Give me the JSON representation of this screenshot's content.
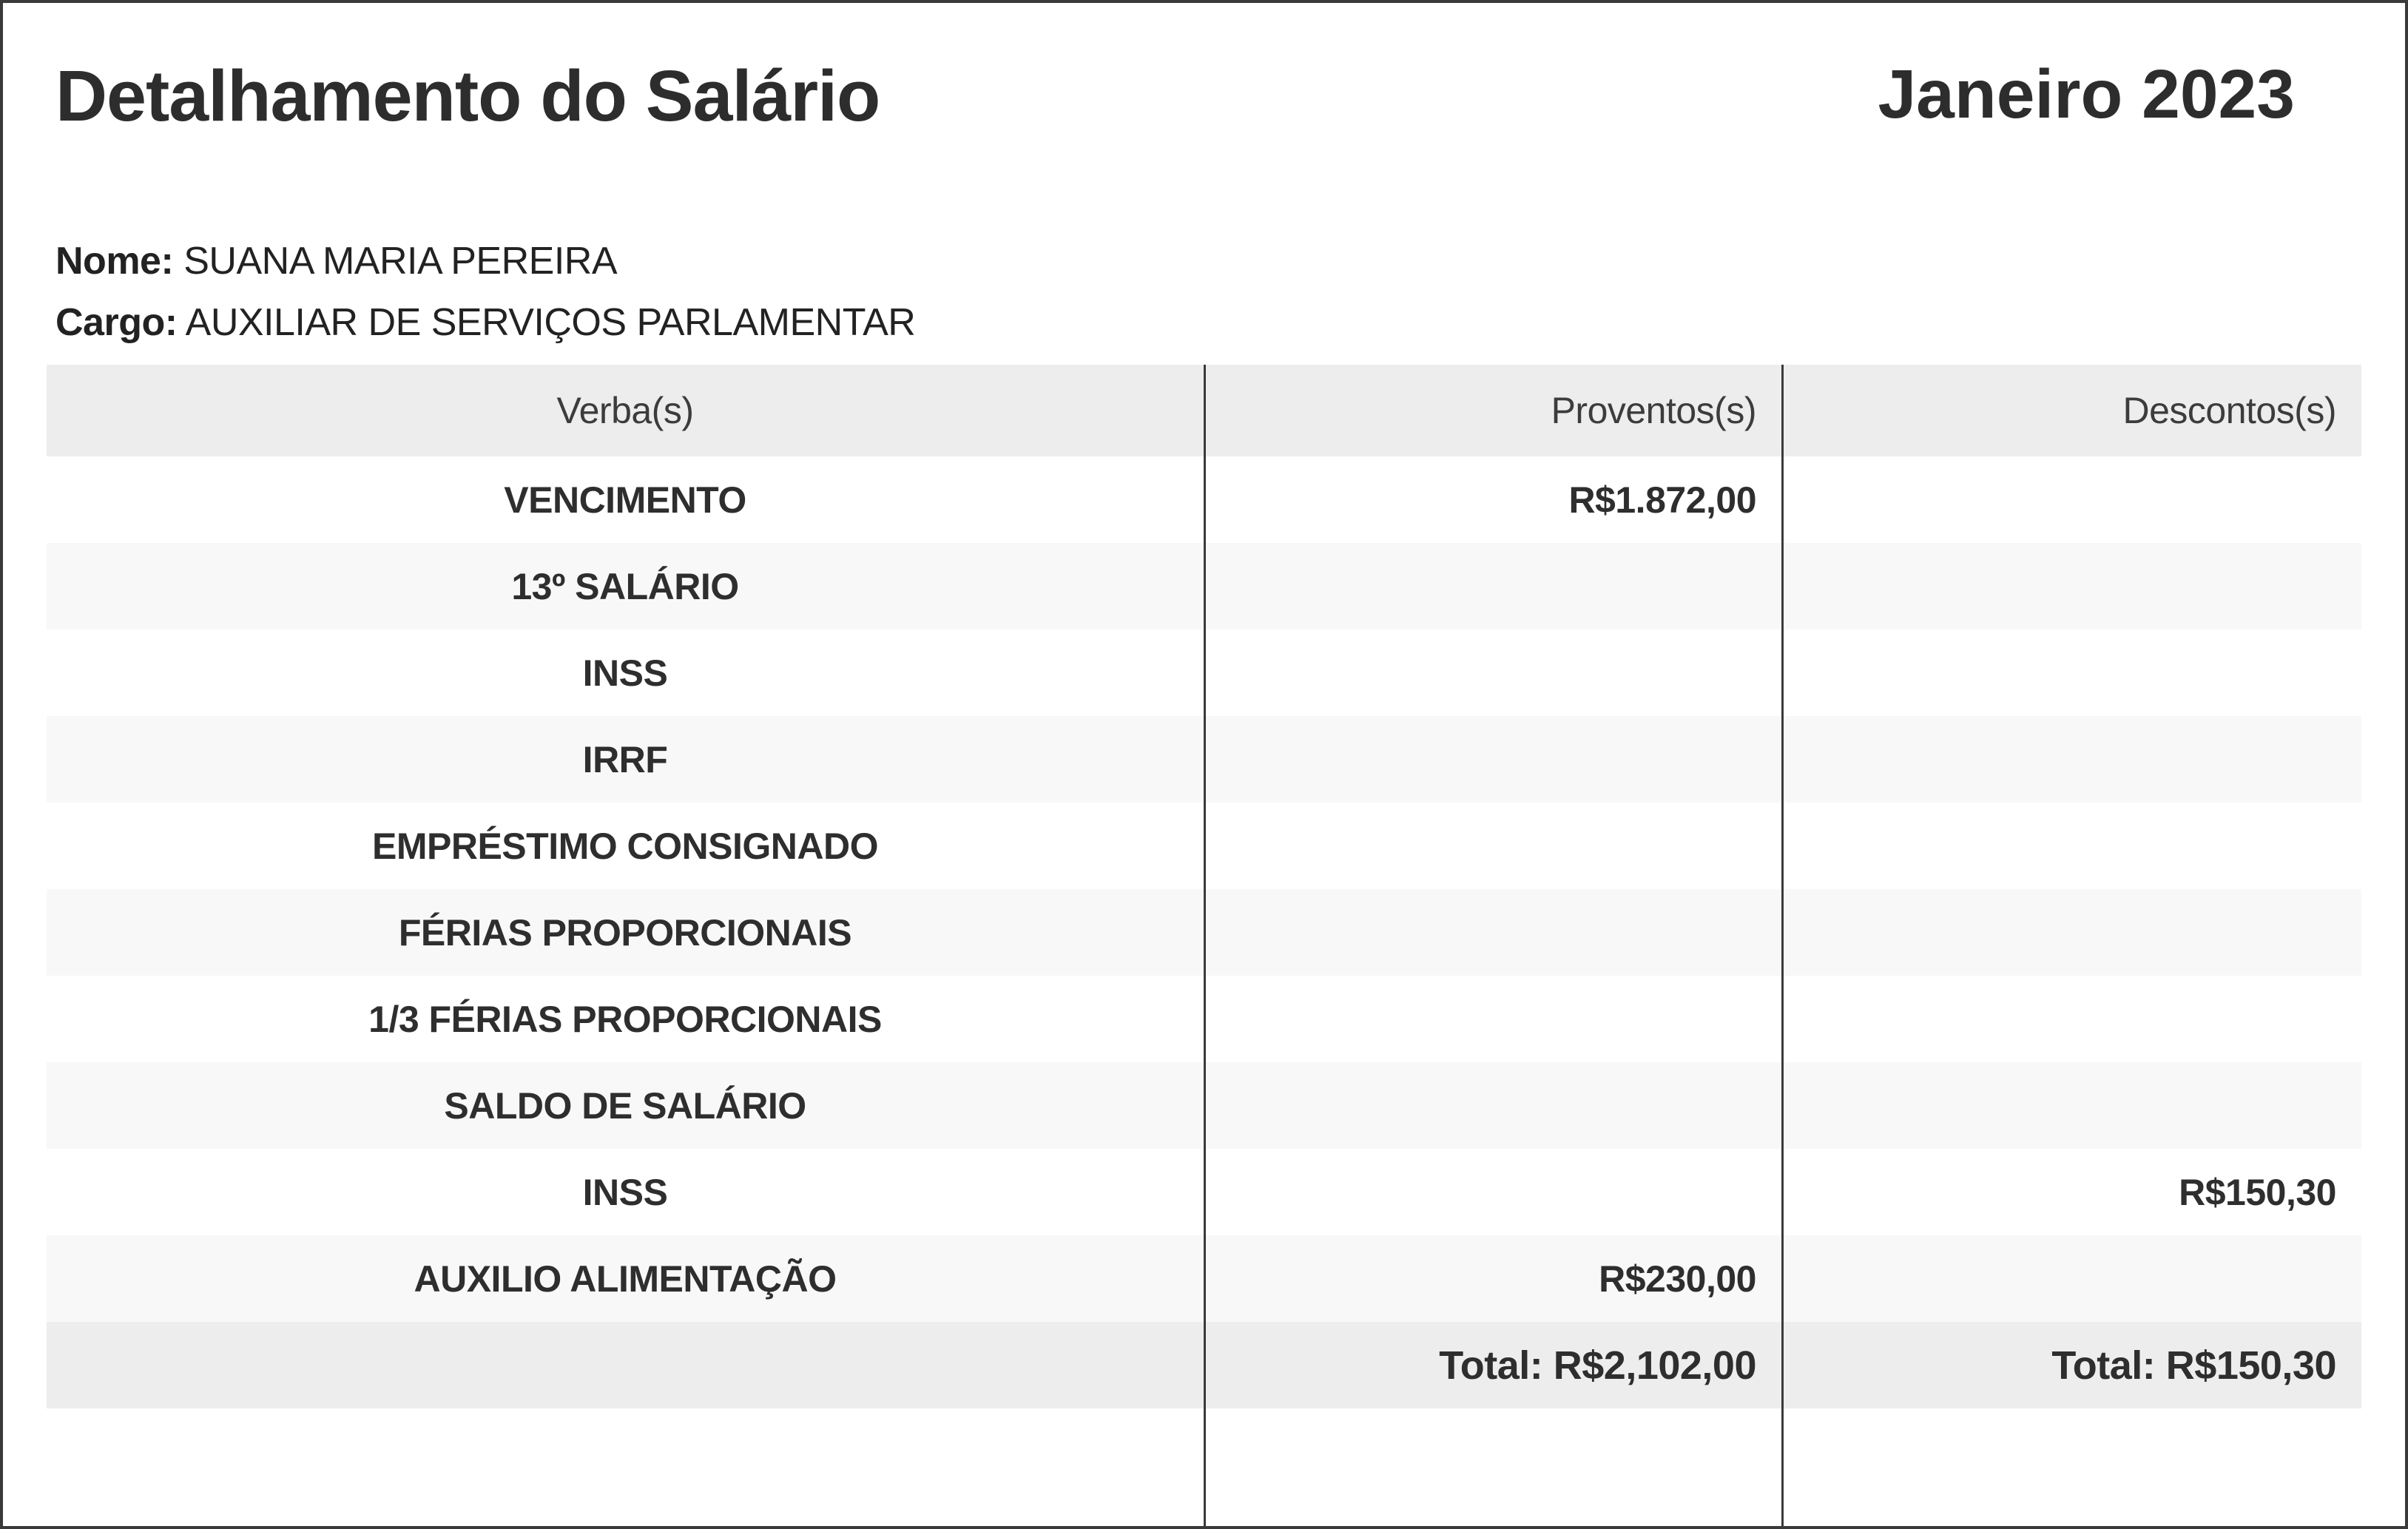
{
  "page": {
    "title": "Detalhamento do Salário",
    "period": "Janeiro 2023"
  },
  "employee": {
    "name_label": "Nome:",
    "name_value": "SUANA MARIA PEREIRA",
    "role_label": "Cargo:",
    "role_value": "AUXILIAR DE SERVIÇOS PARLAMENTAR"
  },
  "table": {
    "headers": {
      "verba": "Verba(s)",
      "proventos": "Proventos(s)",
      "descontos": "Descontos(s)"
    },
    "rows": [
      {
        "verba": "VENCIMENTO",
        "proventos": "R$1.872,00",
        "descontos": ""
      },
      {
        "verba": "13º SALÁRIO",
        "proventos": "",
        "descontos": ""
      },
      {
        "verba": "INSS",
        "proventos": "",
        "descontos": ""
      },
      {
        "verba": "IRRF",
        "proventos": "",
        "descontos": ""
      },
      {
        "verba": "EMPRÉSTIMO CONSIGNADO",
        "proventos": "",
        "descontos": ""
      },
      {
        "verba": "FÉRIAS PROPORCIONAIS",
        "proventos": "",
        "descontos": ""
      },
      {
        "verba": "1/3 FÉRIAS PROPORCIONAIS",
        "proventos": "",
        "descontos": ""
      },
      {
        "verba": "SALDO DE SALÁRIO",
        "proventos": "",
        "descontos": ""
      },
      {
        "verba": "INSS",
        "proventos": "",
        "descontos": "R$150,30"
      },
      {
        "verba": "AUXILIO ALIMENTAÇÃO",
        "proventos": "R$230,00",
        "descontos": ""
      }
    ],
    "totals": {
      "proventos": "Total: R$2,102,00",
      "descontos": "Total: R$150,30"
    }
  },
  "colors": {
    "page_border": "#3a3a3a",
    "column_divider": "#3a3a3a",
    "header_row_bg": "#ededed",
    "total_row_bg": "#ededed",
    "alt_row_bg": "#f8f8f9",
    "text": "#2e2e2e"
  }
}
